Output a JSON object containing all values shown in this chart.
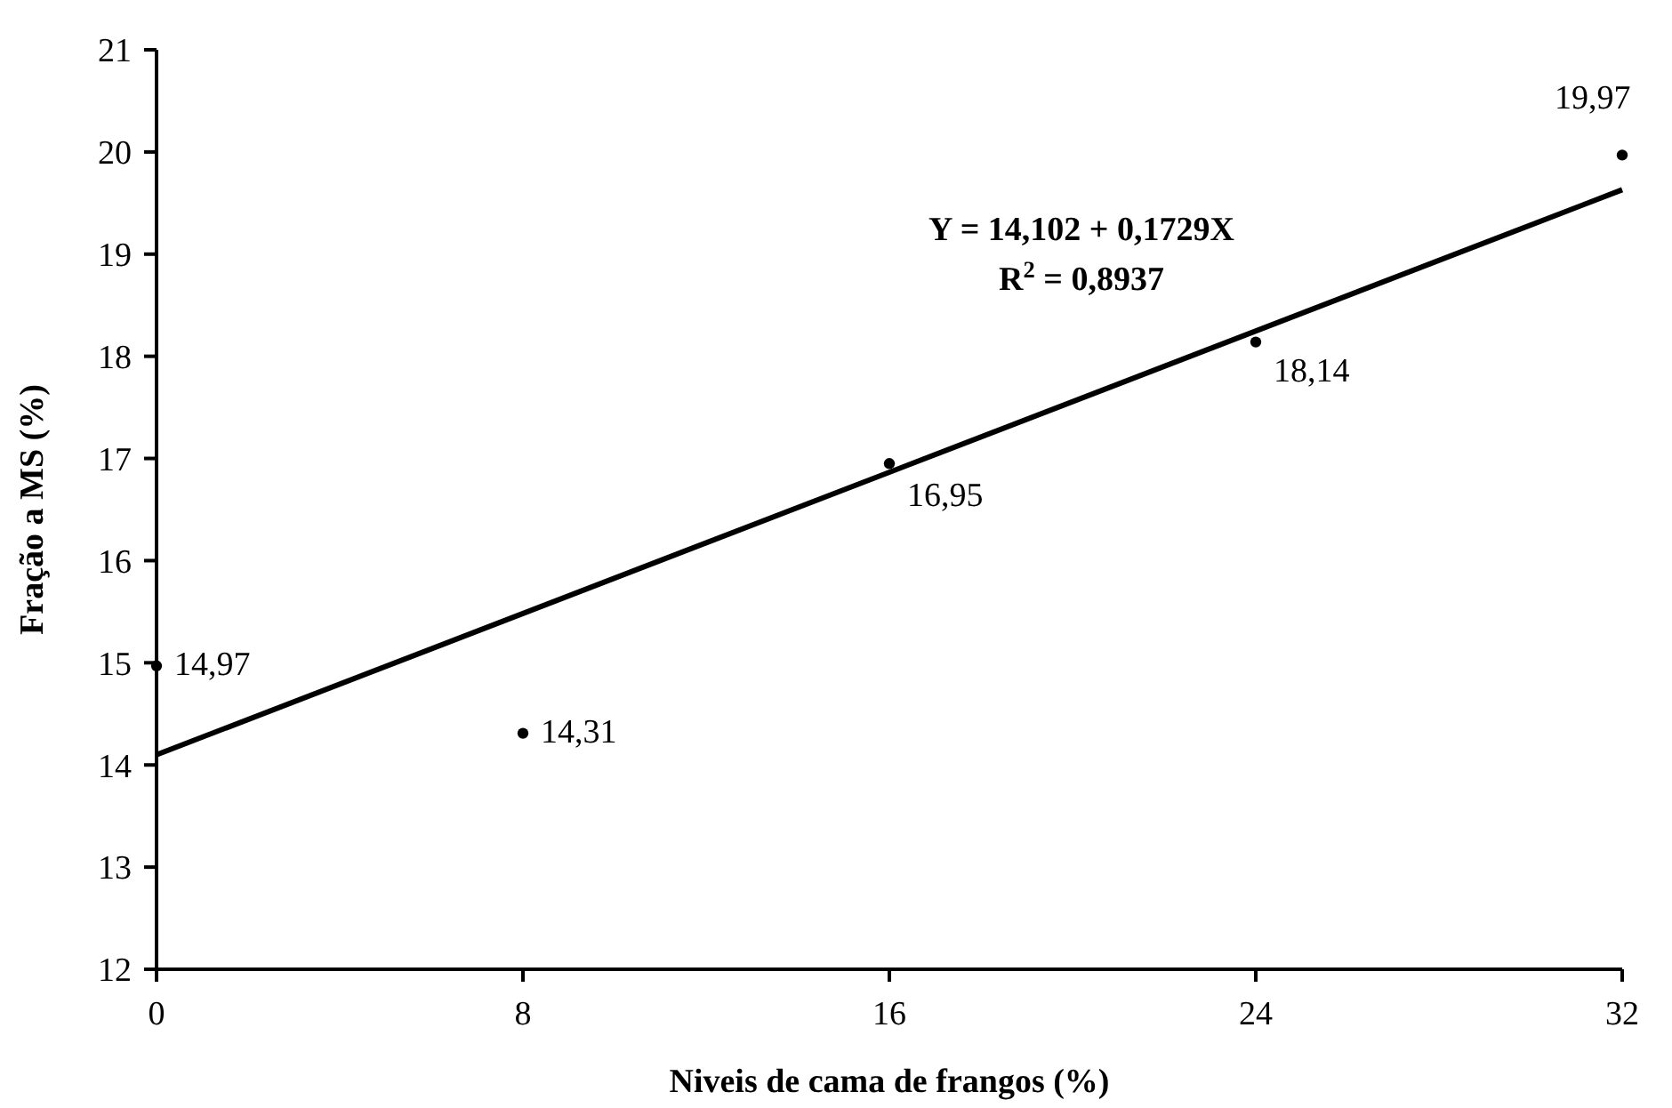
{
  "chart_data": {
    "type": "scatter",
    "xlabel": "Niveis de cama de frangos (%)",
    "ylabel": "Fração a MS (%)",
    "x": [
      0,
      8,
      16,
      24,
      32
    ],
    "series": [
      {
        "color": "#000000",
        "marker": "circle",
        "values": [
          14.97,
          14.31,
          16.95,
          18.14,
          19.97
        ],
        "value_labels": [
          "14,97",
          "14,31",
          "16,95",
          "18,14",
          "19,97"
        ]
      },
      {
        "type": "line",
        "color": "#000000",
        "x": [
          0,
          32
        ],
        "values": [
          14.1,
          19.63
        ],
        "line_style": "solid"
      }
    ],
    "xlim": [
      0,
      32
    ],
    "xticks": [
      0,
      8,
      16,
      24,
      32
    ],
    "ylim": [
      12,
      21
    ],
    "yticks": [
      12,
      13,
      14,
      15,
      16,
      17,
      18,
      19,
      20,
      21
    ],
    "annotations": [
      "Y = 14,102 + 0,1729X",
      "R$^{2}$ = 0,8937"
    ],
    "grid": false
  }
}
